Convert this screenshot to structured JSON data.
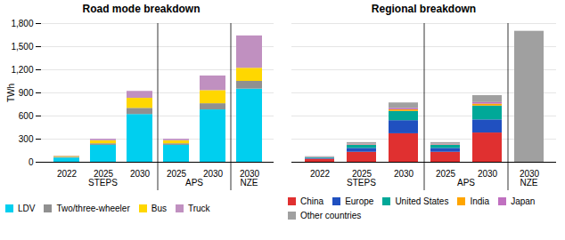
{
  "chart_data": [
    {
      "type": "bar",
      "stacked": true,
      "title": "Road mode breakdown",
      "ylabel": "TWh",
      "categories": [
        "2022",
        "2025",
        "2030",
        "2025",
        "2030",
        "2030"
      ],
      "groups": [
        "STEPS",
        "STEPS",
        "STEPS",
        "APS",
        "APS",
        "NZE"
      ],
      "series": [
        {
          "name": "LDV",
          "color": "#00CFEF",
          "values": [
            55,
            220,
            620,
            220,
            680,
            950
          ]
        },
        {
          "name": "Two/three-wheeler",
          "color": "#909090",
          "values": [
            10,
            20,
            80,
            20,
            80,
            100
          ]
        },
        {
          "name": "Bus",
          "color": "#FFD700",
          "values": [
            10,
            40,
            130,
            40,
            170,
            170
          ]
        },
        {
          "name": "Truck",
          "color": "#C090C0",
          "values": [
            5,
            20,
            90,
            20,
            190,
            420
          ]
        }
      ],
      "ylim": [
        0,
        1800
      ],
      "yticks": [
        0,
        300,
        600,
        900,
        1200,
        1500,
        1800
      ],
      "grid": true,
      "legend": "bottom"
    },
    {
      "type": "bar",
      "stacked": true,
      "title": "Regional breakdown",
      "categories": [
        "2022",
        "2025",
        "2030",
        "2025",
        "2030",
        "2030"
      ],
      "groups": [
        "STEPS",
        "STEPS",
        "STEPS",
        "APS",
        "APS",
        "NZE"
      ],
      "series": [
        {
          "name": "China",
          "color": "#E03030",
          "values": [
            40,
            130,
            370,
            130,
            380,
            0
          ]
        },
        {
          "name": "Europe",
          "color": "#2050C0",
          "values": [
            10,
            50,
            170,
            50,
            170,
            0
          ]
        },
        {
          "name": "United States",
          "color": "#00A898",
          "values": [
            10,
            40,
            120,
            40,
            180,
            0
          ]
        },
        {
          "name": "India",
          "color": "#FFA500",
          "values": [
            2,
            5,
            20,
            5,
            25,
            0
          ]
        },
        {
          "name": "Japan",
          "color": "#C070C0",
          "values": [
            5,
            10,
            20,
            10,
            20,
            0
          ]
        },
        {
          "name": "Other countries",
          "color": "#A0A0A0",
          "values": [
            5,
            20,
            70,
            20,
            90,
            1700
          ]
        }
      ],
      "ylim": [
        0,
        1800
      ],
      "yticks": [
        0,
        300,
        600,
        900,
        1200,
        1500,
        1800
      ],
      "grid": true,
      "legend": "bottom",
      "tick_labels": "x"
    }
  ]
}
